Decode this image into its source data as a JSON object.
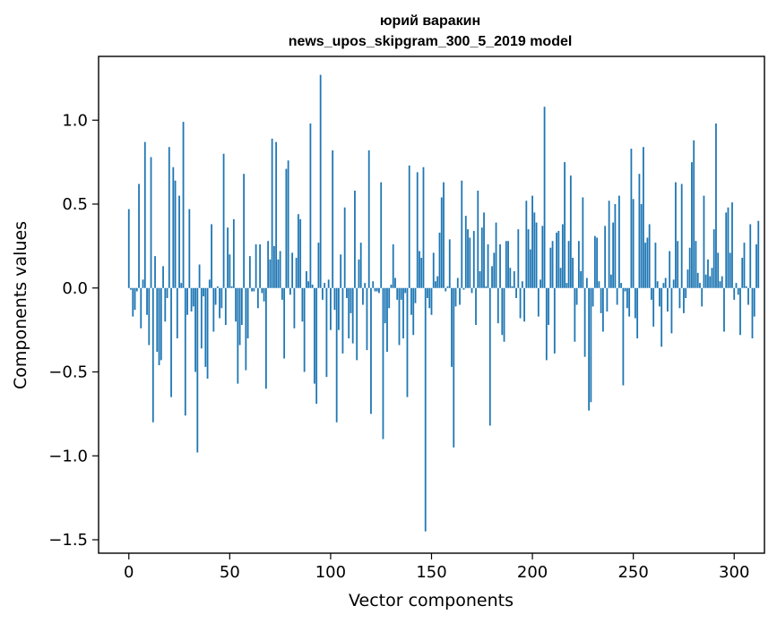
{
  "chart_data": {
    "type": "bar",
    "title_line1": "юрий варакин",
    "title_line2": "news_upos_skipgram_300_5_2019 model",
    "xlabel": "Vector components",
    "ylabel": "Components values",
    "xlim": [
      -15,
      315
    ],
    "ylim": [
      -1.58,
      1.38
    ],
    "xticks": [
      0,
      50,
      100,
      150,
      200,
      250,
      300
    ],
    "xtick_labels": [
      "0",
      "50",
      "100",
      "150",
      "200",
      "250",
      "300"
    ],
    "yticks": [
      -1.5,
      -1.0,
      -0.5,
      0.0,
      0.5,
      1.0
    ],
    "ytick_labels": [
      "−1.5",
      "−1.0",
      "−0.5",
      "0.0",
      "0.5",
      "1.0"
    ],
    "bar_color": "#1f77b4",
    "values": [
      0.47,
      -0.01,
      -0.17,
      -0.13,
      -0.02,
      0.62,
      -0.24,
      0.05,
      0.87,
      -0.16,
      -0.34,
      0.78,
      -0.8,
      0.19,
      -0.38,
      -0.46,
      -0.43,
      0.13,
      -0.2,
      -0.06,
      0.84,
      -0.65,
      0.72,
      0.64,
      -0.3,
      0.55,
      0.03,
      0.99,
      -0.76,
      -0.16,
      0.47,
      -0.14,
      -0.11,
      -0.5,
      -0.98,
      0.14,
      -0.36,
      -0.05,
      -0.47,
      -0.54,
      0.05,
      0.38,
      -0.26,
      -0.1,
      0.01,
      -0.18,
      -0.12,
      0.8,
      -0.22,
      0.36,
      0.2,
      0.01,
      0.41,
      -0.2,
      -0.57,
      -0.34,
      -0.22,
      0.68,
      -0.49,
      -0.3,
      0.19,
      -0.02,
      -0.02,
      0.26,
      -0.12,
      0.26,
      -0.03,
      -0.08,
      -0.6,
      0.28,
      0.17,
      0.89,
      0.25,
      0.87,
      0.17,
      0.22,
      -0.07,
      -0.42,
      0.71,
      0.76,
      -0.04,
      0.21,
      -0.24,
      0.18,
      0.44,
      0.41,
      -0.2,
      -0.5,
      0.1,
      0.04,
      0.98,
      0.02,
      -0.57,
      -0.69,
      0.27,
      1.27,
      -0.07,
      0.03,
      -0.53,
      0.05,
      -0.25,
      0.82,
      -0.13,
      -0.8,
      -0.25,
      0.2,
      -0.39,
      0.48,
      -0.06,
      -0.3,
      -0.15,
      -0.33,
      0.58,
      -0.43,
      0.17,
      0.27,
      -0.1,
      0.03,
      -0.37,
      0.82,
      -0.75,
      0.04,
      -0.02,
      -0.02,
      -0.03,
      0.63,
      -0.9,
      -0.21,
      -0.38,
      -0.12,
      0.02,
      0.26,
      0.06,
      -0.07,
      -0.34,
      -0.07,
      -0.3,
      -0.03,
      -0.65,
      0.73,
      -0.16,
      -0.28,
      -0.09,
      0.69,
      0.22,
      0.18,
      0.72,
      -1.45,
      -0.06,
      -0.12,
      -0.16,
      0.21,
      0.04,
      0.07,
      0.33,
      0.54,
      0.63,
      -0.02,
      0.01,
      0.29,
      -0.47,
      -0.95,
      -0.11,
      0.06,
      -0.1,
      0.64,
      -0.01,
      0.43,
      0.35,
      0.3,
      -0.03,
      0.34,
      -0.22,
      0.58,
      0.1,
      0.36,
      0.45,
      0.01,
      0.26,
      -0.82,
      0.13,
      0.21,
      0.39,
      -0.21,
      0.26,
      -0.28,
      -0.32,
      0.28,
      0.28,
      0.12,
      0.01,
      0.1,
      -0.06,
      0.35,
      -0.18,
      0.04,
      -0.2,
      0.52,
      0.35,
      0.23,
      0.55,
      0.45,
      0.39,
      -0.17,
      0.05,
      0.37,
      1.08,
      -0.43,
      -0.22,
      0.24,
      0.28,
      -0.39,
      0.33,
      0.34,
      0.12,
      0.38,
      0.75,
      0.03,
      0.28,
      0.67,
      0.18,
      -0.32,
      -0.1,
      0.28,
      0.1,
      0.54,
      -0.41,
      0.06,
      -0.73,
      -0.68,
      -0.11,
      0.31,
      0.3,
      0.04,
      -0.15,
      -0.26,
      0.37,
      -0.14,
      0.52,
      0.08,
      0.39,
      0.5,
      -0.1,
      0.55,
      0.03,
      -0.58,
      -0.02,
      -0.12,
      -0.17,
      0.83,
      0.53,
      -0.18,
      -0.3,
      0.68,
      0.5,
      0.84,
      0.27,
      0.3,
      0.38,
      -0.07,
      -0.23,
      0.27,
      0.04,
      -0.11,
      -0.35,
      0.03,
      0.06,
      -0.14,
      0.22,
      -0.27,
      0.05,
      0.63,
      0.28,
      -0.12,
      0.62,
      -0.15,
      -0.06,
      0.11,
      0.24,
      0.75,
      0.88,
      0.28,
      0.09,
      0.03,
      -0.11,
      0.55,
      0.08,
      0.17,
      0.07,
      0.12,
      0.35,
      0.98,
      0.21,
      0.04,
      0.07,
      -0.26,
      0.45,
      0.48,
      0.21,
      0.51,
      -0.07,
      0.03,
      -0.04,
      -0.28,
      0.18,
      0.27,
      0.01,
      -0.1,
      0.38,
      -0.3,
      -0.17,
      0.26,
      0.4
    ]
  }
}
